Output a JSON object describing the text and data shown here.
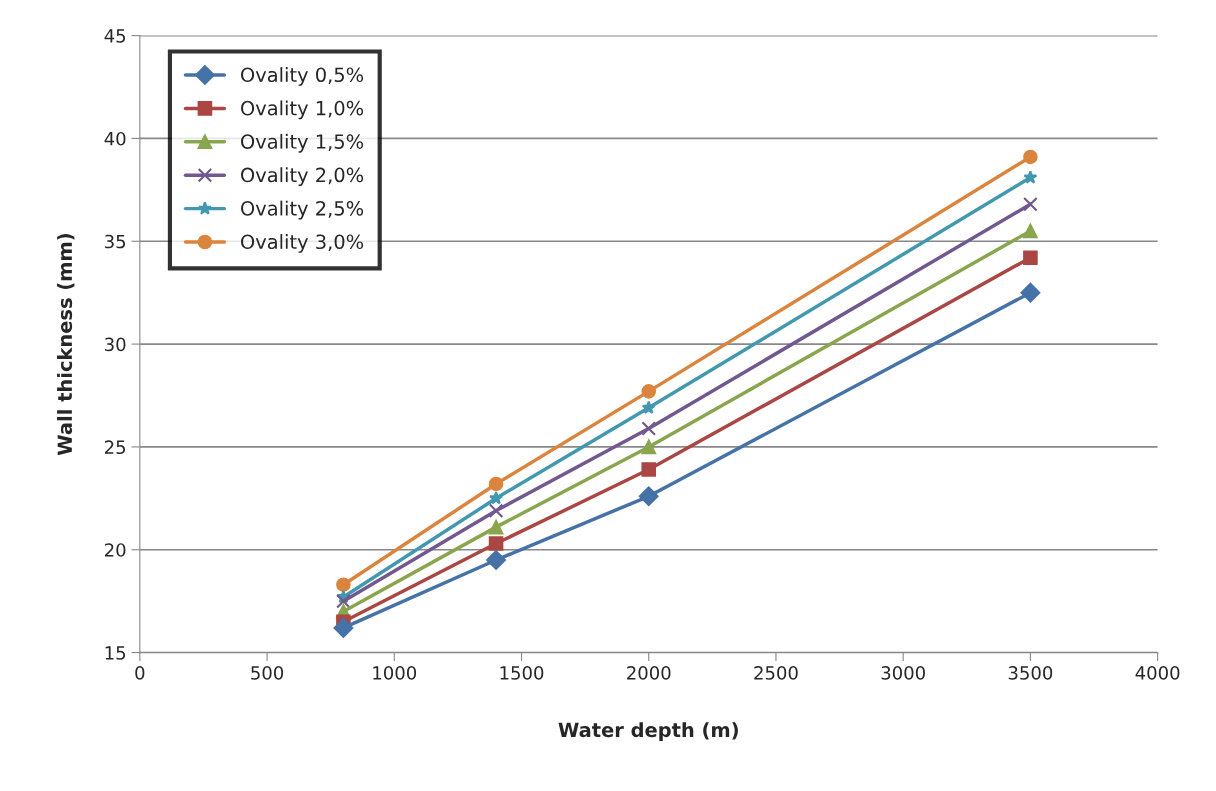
{
  "chart_data": {
    "type": "line",
    "xlabel": "Water depth (m)",
    "ylabel": "Wall thickness (mm)",
    "x": [
      800,
      1400,
      2000,
      3500
    ],
    "xlim": [
      0,
      4000
    ],
    "xticks": [
      0,
      500,
      1000,
      1500,
      2000,
      2500,
      3000,
      3500,
      4000
    ],
    "ylim": [
      15,
      45
    ],
    "yticks": [
      15,
      20,
      25,
      30,
      35,
      40,
      45
    ],
    "grid": "y",
    "legend": "top left",
    "series": [
      {
        "name": "Ovality 0,5%",
        "color": "#4572a7",
        "marker": "diamond",
        "values": [
          16.2,
          19.5,
          22.6,
          32.5
        ]
      },
      {
        "name": "Ovality 1,0%",
        "color": "#aa4643",
        "marker": "square",
        "values": [
          16.5,
          20.3,
          23.9,
          34.2
        ]
      },
      {
        "name": "Ovality 1,5%",
        "color": "#89a54e",
        "marker": "triangle",
        "values": [
          17.0,
          21.1,
          25.0,
          35.5
        ]
      },
      {
        "name": "Ovality 2,0%",
        "color": "#71588f",
        "marker": "cross",
        "values": [
          17.5,
          21.9,
          25.9,
          36.8
        ]
      },
      {
        "name": "Ovality 2,5%",
        "color": "#4198af",
        "marker": "star",
        "values": [
          17.7,
          22.5,
          26.9,
          38.1
        ]
      },
      {
        "name": "Ovality 3,0%",
        "color": "#db843d",
        "marker": "circle",
        "values": [
          18.3,
          23.2,
          27.7,
          39.1
        ]
      }
    ]
  }
}
